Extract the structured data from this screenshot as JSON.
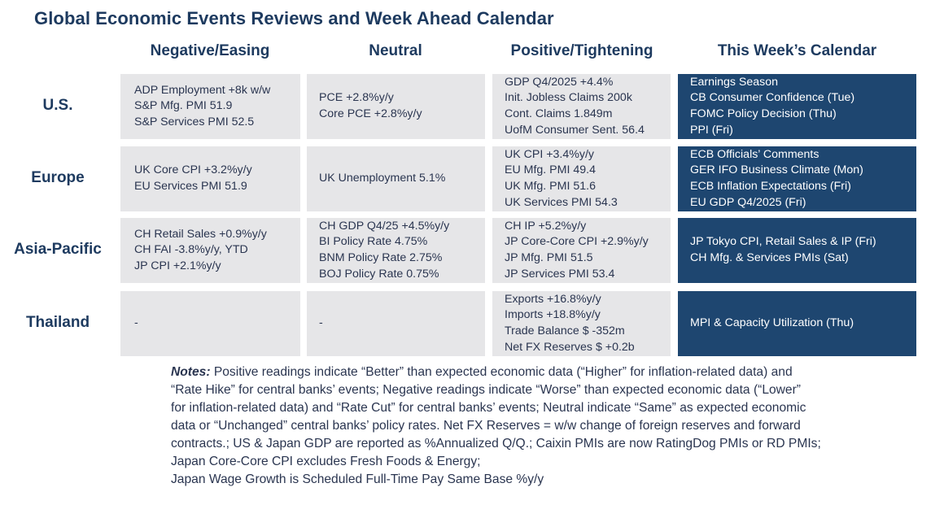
{
  "title": "Global Economic Events Reviews and Week Ahead Calendar",
  "columns": [
    "Negative/Easing",
    "Neutral",
    "Positive/Tightening",
    "This Week’s Calendar"
  ],
  "rows": [
    {
      "region": "U.S.",
      "negative": [
        "ADP Employment +8k w/w",
        "S&P Mfg. PMI 51.9",
        "S&P Services PMI 52.5"
      ],
      "neutral": [
        "PCE +2.8%y/y",
        "Core PCE +2.8%y/y"
      ],
      "positive": [
        "GDP Q4/2025 +4.4%",
        "Init. Jobless Claims 200k",
        "Cont. Claims 1.849m",
        "UofM Consumer Sent. 56.4"
      ],
      "calendar": [
        "Earnings Season",
        "CB Consumer Confidence (Tue)",
        "FOMC Policy Decision (Thu)",
        "PPI (Fri)"
      ]
    },
    {
      "region": "Europe",
      "negative": [
        "UK Core CPI +3.2%y/y",
        "EU Services PMI 51.9"
      ],
      "neutral": [
        "UK Unemployment 5.1%"
      ],
      "positive": [
        "UK CPI +3.4%y/y",
        "EU Mfg. PMI 49.4",
        "UK Mfg. PMI 51.6",
        "UK Services PMI 54.3"
      ],
      "calendar": [
        "ECB Officials’ Comments",
        "GER IFO Business Climate (Mon)",
        "ECB Inflation Expectations (Fri)",
        "EU GDP Q4/2025 (Fri)"
      ]
    },
    {
      "region": "Asia-Pacific",
      "negative": [
        "CH Retail Sales +0.9%y/y",
        "CH FAI -3.8%y/y, YTD",
        "JP CPI +2.1%y/y"
      ],
      "neutral": [
        "CH GDP Q4/25 +4.5%y/y",
        "BI Policy Rate 4.75%",
        "BNM Policy Rate 2.75%",
        "BOJ Policy Rate 0.75%"
      ],
      "positive": [
        "CH IP +5.2%y/y",
        "JP Core-Core CPI +2.9%y/y",
        "JP Mfg. PMI 51.5",
        "JP Services PMI 53.4"
      ],
      "calendar": [
        "JP Tokyo CPI, Retail Sales & IP (Fri)",
        "CH Mfg. & Services PMIs (Sat)"
      ]
    },
    {
      "region": "Thailand",
      "negative": [
        "-"
      ],
      "neutral": [
        "-"
      ],
      "positive": [
        "Exports +16.8%y/y",
        "Imports +18.8%y/y",
        "Trade Balance $ -352m",
        "Net FX Reserves $ +0.2b"
      ],
      "calendar": [
        "MPI & Capacity Utilization (Thu)"
      ]
    }
  ],
  "notes": {
    "label": "Notes:",
    "lines": [
      " Positive readings indicate “Better” than expected economic data (“Higher” for inflation-related data) and",
      "“Rate Hike” for central banks’ events; Negative readings indicate “Worse” than expected economic data (“Lower”",
      "for inflation-related data) and “Rate Cut” for central banks’ events; Neutral indicate “Same” as expected economic",
      "data or “Unchanged” central banks’ policy rates. Net FX Reserves = w/w change of foreign reserves and forward",
      "contracts.; US & Japan GDP are reported as %Annualized Q/Q.; Caixin PMIs are now RatingDog PMIs or RD PMIs;",
      "Japan Core-Core CPI excludes Fresh Foods & Energy;",
      "Japan Wage Growth is Scheduled Full-Time Pay Same Base %y/y"
    ]
  },
  "colors": {
    "title": "#1d3a5f",
    "cell": "#e6e6e8",
    "calendar": "#1e4670",
    "text": "#2a3550"
  }
}
